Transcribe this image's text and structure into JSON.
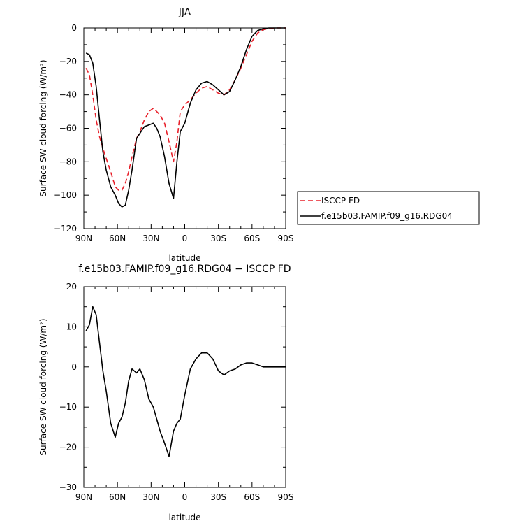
{
  "chart_data": [
    {
      "type": "line",
      "title": "JJA",
      "xlabel": "latitude",
      "ylabel": "Surface SW cloud forcing (W/m²)",
      "x_tick_labels": [
        "90N",
        "60N",
        "30N",
        "0",
        "30S",
        "60S",
        "90S"
      ],
      "x_ticks": [
        90,
        60,
        30,
        0,
        -30,
        -60,
        -90
      ],
      "xlim": [
        90,
        -90
      ],
      "ylim": [
        -120,
        0
      ],
      "y_ticks": [
        0,
        -20,
        -40,
        -60,
        -80,
        -100,
        -120
      ],
      "y_tick_labels": [
        "0",
        "−20",
        "−40",
        "−60",
        "−80",
        "−100",
        "−120"
      ],
      "legend": "right",
      "grid": false,
      "series": [
        {
          "name": "ISCCP FD",
          "color": "#e8202a",
          "style": "dashed",
          "x": [
            88,
            85,
            82,
            79,
            76,
            73,
            70,
            66,
            62,
            59,
            56,
            53,
            50,
            47,
            43,
            40,
            36,
            32,
            28,
            25,
            22,
            18,
            14,
            10,
            7,
            4,
            0,
            -5,
            -10,
            -15,
            -20,
            -25,
            -30,
            -35,
            -40,
            -45,
            -50,
            -55,
            -60,
            -65,
            -70,
            -75,
            -80,
            -85,
            -90
          ],
          "y": [
            -24,
            -28,
            -40,
            -55,
            -65,
            -72,
            -78,
            -86,
            -95,
            -97,
            -97,
            -93,
            -86,
            -77,
            -66,
            -62,
            -55,
            -50,
            -48,
            -50,
            -52,
            -57,
            -68,
            -80,
            -68,
            -50,
            -46,
            -43,
            -39,
            -36,
            -35,
            -37,
            -39,
            -40,
            -37,
            -31,
            -24,
            -16,
            -8,
            -3,
            -1,
            -0.5,
            0,
            0,
            0
          ]
        },
        {
          "name": "f.e15b03.FAMIP.f09_g16.RDG04",
          "color": "#000000",
          "style": "solid",
          "x": [
            88,
            85,
            82,
            79,
            76,
            73,
            70,
            66,
            62,
            59,
            56,
            53,
            50,
            47,
            43,
            40,
            36,
            32,
            28,
            25,
            22,
            18,
            14,
            10,
            7,
            4,
            0,
            -5,
            -10,
            -15,
            -20,
            -25,
            -30,
            -35,
            -40,
            -45,
            -50,
            -55,
            -60,
            -65,
            -70,
            -75,
            -80,
            -85,
            -90
          ],
          "y": [
            -15,
            -16,
            -21,
            -35,
            -55,
            -74,
            -85,
            -95,
            -100,
            -105,
            -107,
            -106,
            -97,
            -85,
            -66,
            -63,
            -59,
            -58,
            -57,
            -60,
            -65,
            -77,
            -93,
            -102,
            -80,
            -62,
            -57,
            -45,
            -37,
            -33,
            -32,
            -34,
            -37,
            -40,
            -38,
            -31,
            -23,
            -13,
            -5,
            -1.5,
            -0.5,
            0,
            0,
            0,
            0
          ]
        }
      ]
    },
    {
      "type": "line",
      "title": "f.e15b03.FAMIP.f09_g16.RDG04 − ISCCP FD",
      "xlabel": "latitude",
      "ylabel": "Surface SW cloud forcing (W/m²)",
      "x_tick_labels": [
        "90N",
        "60N",
        "30N",
        "0",
        "30S",
        "60S",
        "90S"
      ],
      "x_ticks": [
        90,
        60,
        30,
        0,
        -30,
        -60,
        -90
      ],
      "xlim": [
        90,
        -90
      ],
      "ylim": [
        -30,
        20
      ],
      "y_ticks": [
        20,
        10,
        0,
        -10,
        -20,
        -30
      ],
      "y_tick_labels": [
        "20",
        "10",
        "0",
        "−10",
        "−20",
        "−30"
      ],
      "grid": false,
      "series": [
        {
          "color": "#000000",
          "style": "solid",
          "x": [
            88,
            85,
            82,
            79,
            76,
            73,
            70,
            66,
            62,
            59,
            56,
            53,
            50,
            47,
            43,
            40,
            36,
            32,
            28,
            25,
            22,
            18,
            14,
            10,
            7,
            4,
            0,
            -5,
            -10,
            -15,
            -20,
            -25,
            -30,
            -35,
            -40,
            -45,
            -50,
            -55,
            -60,
            -65,
            -70,
            -75,
            -80,
            -85,
            -90
          ],
          "y": [
            9,
            10.5,
            15,
            13,
            6,
            -1,
            -6,
            -14,
            -17.5,
            -14,
            -12.5,
            -9,
            -3.5,
            -0.5,
            -1.5,
            -0.5,
            -3.2,
            -8,
            -10,
            -13,
            -16,
            -19,
            -22.3,
            -16,
            -14,
            -13,
            -7,
            -0.5,
            2,
            3.5,
            3.5,
            2,
            -1,
            -2,
            -1,
            -0.5,
            0.5,
            1,
            1,
            0.5,
            0,
            0,
            0,
            0,
            0
          ]
        }
      ]
    }
  ]
}
